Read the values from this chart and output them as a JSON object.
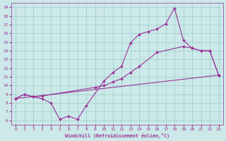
{
  "bg_color": "#cce8e8",
  "line_color": "#993399",
  "grid_color": "#99cccc",
  "xlabel": "Windchill (Refroidissement éolien,°C)",
  "xlim": [
    -0.5,
    23.5
  ],
  "ylim": [
    5.5,
    19.5
  ],
  "xticks": [
    0,
    1,
    2,
    3,
    4,
    5,
    6,
    7,
    8,
    9,
    10,
    11,
    12,
    13,
    14,
    15,
    16,
    17,
    18,
    19,
    20,
    21,
    22,
    23
  ],
  "yticks": [
    6,
    7,
    8,
    9,
    10,
    11,
    12,
    13,
    14,
    15,
    16,
    17,
    18,
    19
  ],
  "line1_x": [
    0,
    1,
    2,
    3,
    4,
    5,
    6,
    7,
    8,
    10,
    11,
    12,
    13,
    14,
    15,
    16,
    17,
    18,
    19,
    20,
    21,
    22,
    23
  ],
  "line1_y": [
    8.5,
    9.0,
    8.7,
    8.5,
    8.0,
    6.1,
    6.5,
    6.1,
    7.7,
    10.5,
    11.5,
    12.2,
    14.9,
    15.9,
    16.2,
    16.5,
    17.1,
    18.9,
    15.2,
    14.3,
    14.0,
    14.0,
    11.2
  ],
  "line2_x": [
    0,
    1,
    2,
    3,
    9,
    10,
    11,
    12,
    13,
    14,
    16,
    19,
    20,
    21,
    22,
    23
  ],
  "line2_y": [
    8.5,
    9.0,
    8.7,
    8.8,
    9.8,
    10.0,
    10.4,
    10.8,
    11.5,
    12.2,
    13.8,
    14.5,
    14.3,
    14.0,
    14.0,
    11.2
  ],
  "line3_x": [
    0,
    23
  ],
  "line3_y": [
    8.5,
    11.2
  ],
  "line4_x": [
    0,
    1,
    2,
    3,
    4,
    5,
    6,
    7,
    8,
    9,
    10,
    11,
    12,
    13,
    14,
    15,
    16,
    17,
    18,
    19,
    20,
    21,
    22,
    23
  ],
  "line4_y": [
    8.5,
    8.7,
    8.8,
    9.0,
    null,
    null,
    null,
    null,
    null,
    9.6,
    9.9,
    10.1,
    10.3,
    10.6,
    10.9,
    11.2,
    11.5,
    11.7,
    null,
    null,
    null,
    null,
    null,
    11.2
  ]
}
